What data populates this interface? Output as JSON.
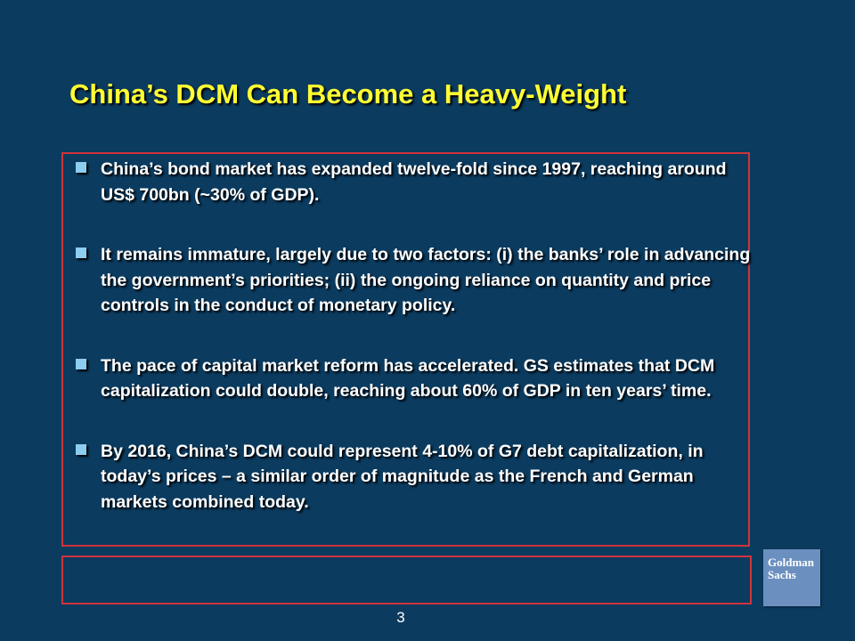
{
  "slide": {
    "title": "China’s DCM Can Become a Heavy-Weight",
    "bullets": [
      "China’s bond market has expanded twelve-fold since 1997, reaching around US$ 700bn (~30% of GDP).",
      "It remains immature, largely due to two factors: (i) the banks’ role in advancing the government’s priorities; (ii) the ongoing reliance on quantity and price controls in the conduct of monetary policy.",
      "The pace of capital market reform has accelerated. GS estimates that DCM capitalization could double, reaching about 60% of GDP in ten years’ time.",
      "By 2016, China’s DCM could represent 4-10% of G7 debt capitalization, in today’s prices – a similar order of magnitude as the French and German markets combined today."
    ],
    "page_number": "3"
  },
  "logo": {
    "line1": "Goldman",
    "line2": "Sachs"
  },
  "colors": {
    "background": "#0b3b5f",
    "title": "#ffff33",
    "bullet_marker": "#8ccdf0",
    "box_border": "#d0343c",
    "logo_background": "#6b90c0"
  }
}
